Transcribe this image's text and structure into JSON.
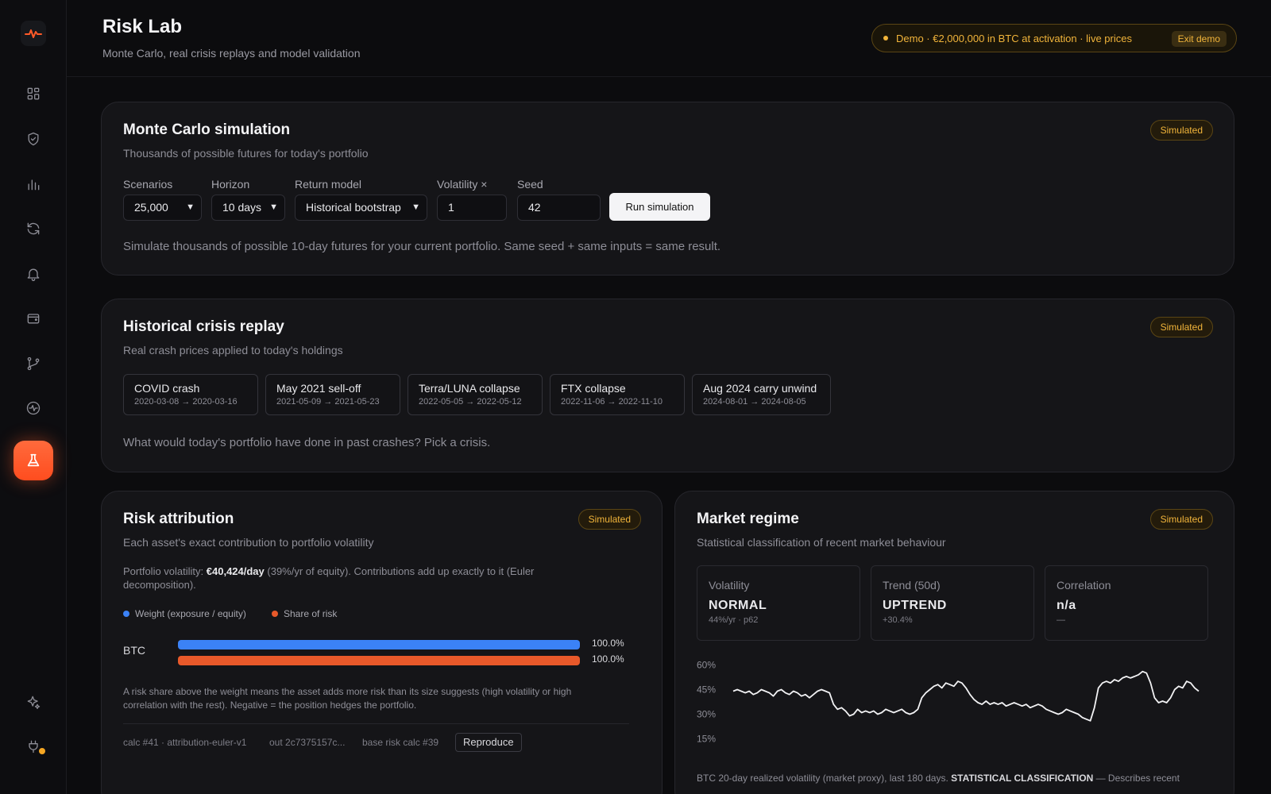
{
  "header": {
    "title": "Risk Lab",
    "subtitle": "Monte Carlo, real crisis replays and model validation",
    "demo_text": "Demo · €2,000,000 in BTC at activation · live prices",
    "exit_demo": "Exit demo"
  },
  "sidebar": {
    "items": [
      "dashboard-icon",
      "shield-icon",
      "bar-chart-icon",
      "refresh-icon",
      "bell-icon",
      "wallet-icon",
      "branch-icon",
      "pulse-icon",
      "flask-icon"
    ],
    "bottom": [
      "sparkle-icon",
      "plug-icon"
    ],
    "active": "flask-icon"
  },
  "colors": {
    "accent": "#ff5a28",
    "badge": "#f1b43a",
    "weight": "#3b82f6",
    "risk": "#e8592a"
  },
  "monte_carlo": {
    "title": "Monte Carlo simulation",
    "subtitle": "Thousands of possible futures for today's portfolio",
    "badge": "Simulated",
    "scenarios_label": "Scenarios",
    "scenarios_value": "25,000",
    "horizon_label": "Horizon",
    "horizon_value": "10 days",
    "model_label": "Return model",
    "model_value": "Historical bootstrap",
    "vol_label": "Volatility ×",
    "vol_value": "1",
    "seed_label": "Seed",
    "seed_value": "42",
    "run_label": "Run simulation",
    "help": "Simulate thousands of possible 10-day futures for your current portfolio. Same seed + same inputs = same result."
  },
  "crisis": {
    "title": "Historical crisis replay",
    "subtitle": "Real crash prices applied to today's holdings",
    "badge": "Simulated",
    "items": [
      {
        "name": "COVID crash",
        "dates": "2020-03-08 → 2020-03-16"
      },
      {
        "name": "May 2021 sell-off",
        "dates": "2021-05-09 → 2021-05-23"
      },
      {
        "name": "Terra/LUNA collapse",
        "dates": "2022-05-05 → 2022-05-12"
      },
      {
        "name": "FTX collapse",
        "dates": "2022-11-06 → 2022-11-10"
      },
      {
        "name": "Aug 2024 carry unwind",
        "dates": "2024-08-01 → 2024-08-05"
      }
    ],
    "help": "What would today's portfolio have done in past crashes? Pick a crisis."
  },
  "attribution": {
    "title": "Risk attribution",
    "subtitle": "Each asset's exact contribution to portfolio volatility",
    "badge": "Simulated",
    "vol_prefix": "Portfolio volatility: ",
    "vol_value": "€40,424/day",
    "vol_suffix": " (39%/yr of equity). Contributions add up exactly to it (Euler decomposition).",
    "legend_weight": "Weight (exposure / equity)",
    "legend_risk": "Share of risk",
    "asset": "BTC",
    "weight_pct": 100.0,
    "risk_pct": 100.0,
    "weight_label": "100.0%",
    "risk_label": "100.0%",
    "note": "A risk share above the weight means the asset adds more risk than its size suggests (high volatility or high correlation with the rest). Negative = the position hedges the portfolio.",
    "calc": "calc #41 · attribution-euler-v1",
    "out": "out 2c7375157c...",
    "base": "base risk calc #39",
    "reproduce": "Reproduce"
  },
  "regime": {
    "title": "Market regime",
    "subtitle": "Statistical classification of recent market behaviour",
    "badge": "Simulated",
    "stats": [
      {
        "label": "Volatility",
        "value": "NORMAL",
        "sub": "44%/yr · p62"
      },
      {
        "label": "Trend (50d)",
        "value": "UPTREND",
        "sub": "+30.4%"
      },
      {
        "label": "Correlation",
        "value": "n/a",
        "sub": "—"
      }
    ],
    "footer_prefix": "BTC 20-day realized volatility (market proxy), last 180 days. ",
    "footer_bold": "STATISTICAL CLASSIFICATION",
    "footer_suffix": " — Describes recent"
  },
  "chart_data": {
    "type": "line",
    "title": "",
    "xlabel": "",
    "ylabel": "",
    "ylim": [
      10,
      65
    ],
    "yticks": [
      "60%",
      "45%",
      "30%",
      "15%"
    ],
    "ytick_values": [
      60,
      45,
      30,
      15
    ],
    "grid": false,
    "series": [
      {
        "values": [
          44,
          45,
          44,
          43,
          44,
          42,
          43,
          45,
          44,
          43,
          41,
          44,
          45,
          43,
          42,
          44,
          43,
          41,
          42,
          40,
          42,
          44,
          45,
          44,
          43,
          36,
          33,
          34,
          32,
          29,
          30,
          33,
          31,
          32,
          31,
          32,
          30,
          31,
          33,
          32,
          31,
          32,
          33,
          31,
          30,
          31,
          33,
          40,
          43,
          45,
          47,
          48,
          46,
          49,
          48,
          47,
          50,
          49,
          46,
          42,
          39,
          37,
          36,
          38,
          36,
          37,
          36,
          37,
          35,
          36,
          37,
          36,
          35,
          36,
          34,
          35,
          36,
          35,
          33,
          32,
          31,
          30,
          31,
          33,
          32,
          31,
          30,
          28,
          27,
          26,
          34,
          46,
          49,
          50,
          49,
          51,
          50,
          52,
          53,
          52,
          53,
          54,
          56,
          55,
          49,
          40,
          37,
          38,
          37,
          40,
          45,
          47,
          46,
          50,
          49,
          46,
          44
        ]
      }
    ]
  }
}
